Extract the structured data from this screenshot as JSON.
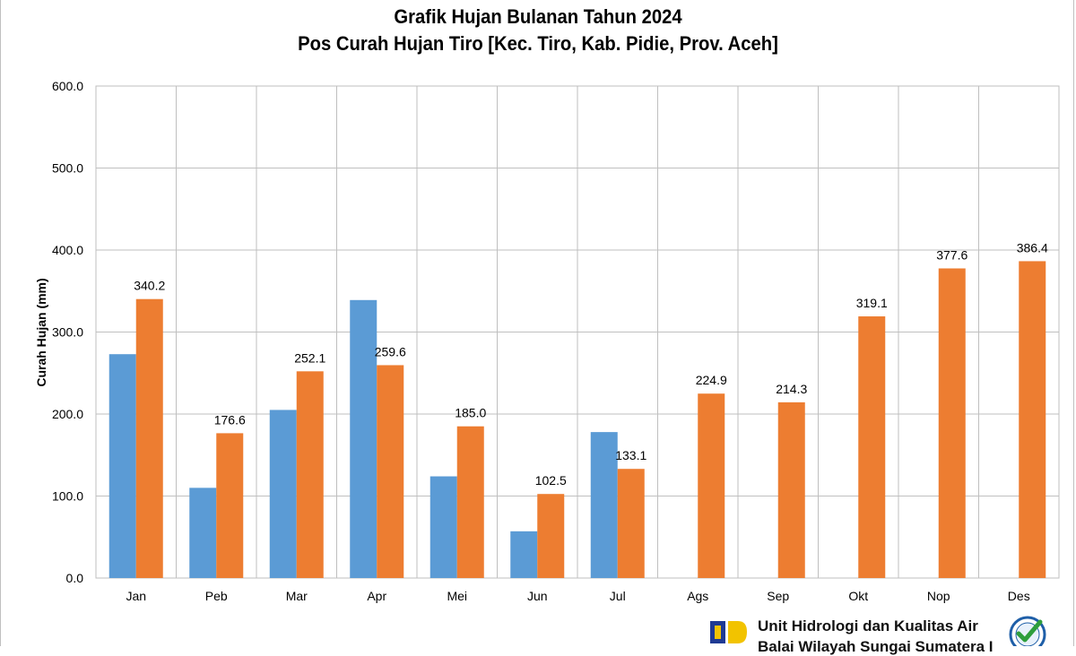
{
  "chart_data": {
    "type": "bar",
    "title": "Grafik Hujan Bulanan Tahun 2024",
    "subtitle": "Pos Curah Hujan Tiro [Kec. Tiro, Kab. Pidie, Prov. Aceh]",
    "xlabel": "",
    "ylabel": "Curah Hujan (mm)",
    "ylim": [
      0,
      600
    ],
    "yticks": [
      "0.0",
      "100.0",
      "200.0",
      "300.0",
      "400.0",
      "500.0",
      "600.0"
    ],
    "grid": true,
    "categories": [
      "Jan",
      "Peb",
      "Mar",
      "Apr",
      "Mei",
      "Jun",
      "Jul",
      "Ags",
      "Sep",
      "Okt",
      "Nop",
      "Des"
    ],
    "series": [
      {
        "color": "#5b9bd5",
        "values": [
          273,
          110,
          205,
          339,
          124,
          57,
          178,
          null,
          null,
          null,
          null,
          null
        ],
        "labels": [
          null,
          null,
          null,
          null,
          null,
          null,
          null,
          null,
          null,
          null,
          null,
          null
        ]
      },
      {
        "color": "#ed7d31",
        "values": [
          340.2,
          176.6,
          252.1,
          259.6,
          185.0,
          102.5,
          133.1,
          224.9,
          214.3,
          319.1,
          377.6,
          386.4
        ],
        "labels": [
          "340.2",
          "176.6",
          "252.1",
          "259.6",
          "185.0",
          "102.5",
          "133.1",
          "224.9",
          "214.3",
          "319.1",
          "377.6",
          "386.4"
        ]
      }
    ]
  },
  "footer": {
    "org_line1": "Unit Hidrologi dan Kualitas Air",
    "org_line2": "Balai Wilayah Sungai Sumatera I"
  },
  "icons": {
    "left_logo": "pupr-logo-icon",
    "right_logo": "iso-certification-icon"
  }
}
